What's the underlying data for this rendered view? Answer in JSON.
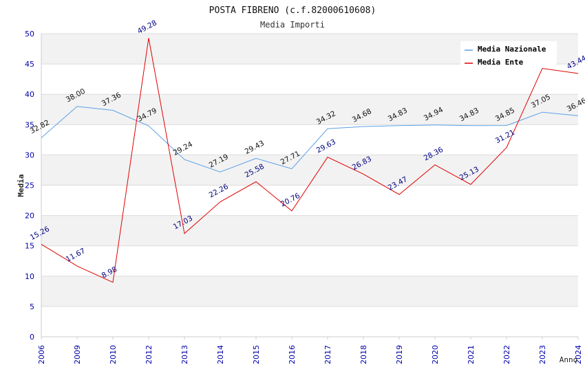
{
  "chart_data": {
    "type": "line",
    "title": "POSTA FIBRENO (c.f.82000610608)",
    "subtitle": "Media Importi",
    "xlabel": "Anno",
    "ylabel": "Media",
    "ylim": [
      0,
      50
    ],
    "yticks": [
      0,
      5,
      10,
      15,
      20,
      25,
      30,
      35,
      40,
      45,
      50
    ],
    "grid": true,
    "legend_position": "top-right",
    "categories": [
      "2006",
      "2009",
      "2010",
      "2012",
      "2013",
      "2014",
      "2015",
      "2016",
      "2017",
      "2018",
      "2019",
      "2020",
      "2021",
      "2022",
      "2023",
      "2024"
    ],
    "series": [
      {
        "name": "Media Nazionale",
        "color": "#5aa0e6",
        "values": [
          32.82,
          38.0,
          37.36,
          34.79,
          29.24,
          27.19,
          29.43,
          27.71,
          34.32,
          34.68,
          34.83,
          34.94,
          34.83,
          34.85,
          37.05,
          36.46
        ],
        "labels": [
          "32.82",
          "38.00",
          "37.36",
          "34.79",
          "29.24",
          "27.19",
          "29.43",
          "27.71",
          "34.32",
          "34.68",
          "34.83",
          "34.94",
          "34.83",
          "34.85",
          "37.05",
          "36.46"
        ]
      },
      {
        "name": "Media Ente",
        "color": "#e00000",
        "values": [
          15.26,
          11.67,
          8.98,
          49.28,
          17.03,
          22.26,
          25.58,
          20.76,
          29.63,
          26.83,
          23.47,
          28.36,
          25.13,
          31.21,
          44.27,
          43.44
        ],
        "labels": [
          "15.26",
          "11.67",
          "8.98",
          "49.28",
          "17.03",
          "22.26",
          "25.58",
          "20.76",
          "29.63",
          "26.83",
          "23.47",
          "28.36",
          "25.13",
          "31.21",
          "",
          "43.44"
        ]
      }
    ]
  }
}
